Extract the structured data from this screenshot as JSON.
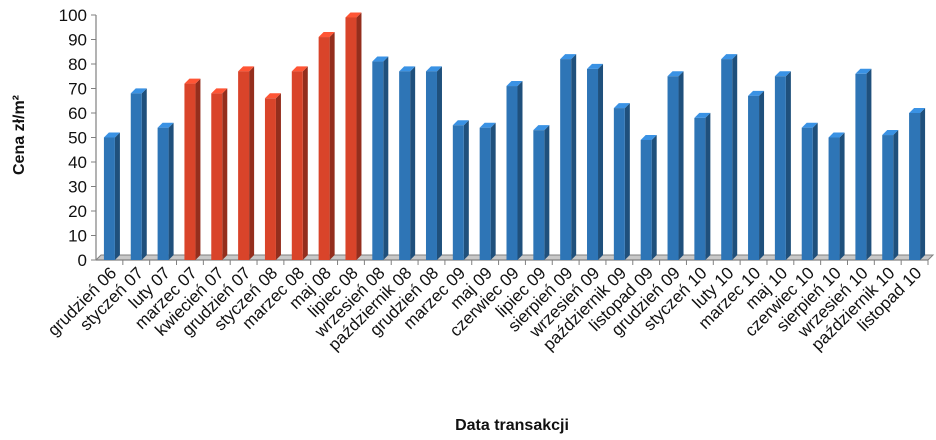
{
  "chart_data": {
    "type": "bar",
    "title": "",
    "xlabel": "Data transakcji",
    "ylabel": "Cena zł/m²",
    "ylim": [
      0,
      100
    ],
    "ytick_step": 10,
    "grid": false,
    "categories": [
      "grudzień 06",
      "styczeń 07",
      "luty 07",
      "marzec 07",
      "kwiecień 07",
      "grudzień 07",
      "styczeń 08",
      "marzec 08",
      "maj 08",
      "lipiec 08",
      "wrzesień 08",
      "październik 08",
      "grudzień 08",
      "marzec 09",
      "maj 09",
      "czerwiec 09",
      "lipiec 09",
      "sierpień 09",
      "wrzesień 09",
      "październik 09",
      "listopad 09",
      "grudzień 09",
      "styczeń 10",
      "luty 10",
      "marzec 10",
      "maj 10",
      "czerwiec 10",
      "sierpień 10",
      "wrzesień 10",
      "październik 10",
      "listopad 10"
    ],
    "values": [
      50,
      68,
      54,
      72,
      68,
      77,
      66,
      77,
      91,
      99,
      81,
      77,
      77,
      55,
      54,
      71,
      53,
      82,
      78,
      62,
      49,
      75,
      58,
      82,
      67,
      75,
      54,
      50,
      76,
      51,
      60
    ],
    "highlighted": [
      false,
      false,
      false,
      true,
      true,
      true,
      true,
      true,
      true,
      true,
      false,
      false,
      false,
      false,
      false,
      false,
      false,
      false,
      false,
      false,
      false,
      false,
      false,
      false,
      false,
      false,
      false,
      false,
      false,
      false,
      false
    ],
    "colors": {
      "default": "#2e75b6",
      "highlight": "#d9442a",
      "axis": "#808080",
      "floor": "#c8c8c8"
    }
  }
}
